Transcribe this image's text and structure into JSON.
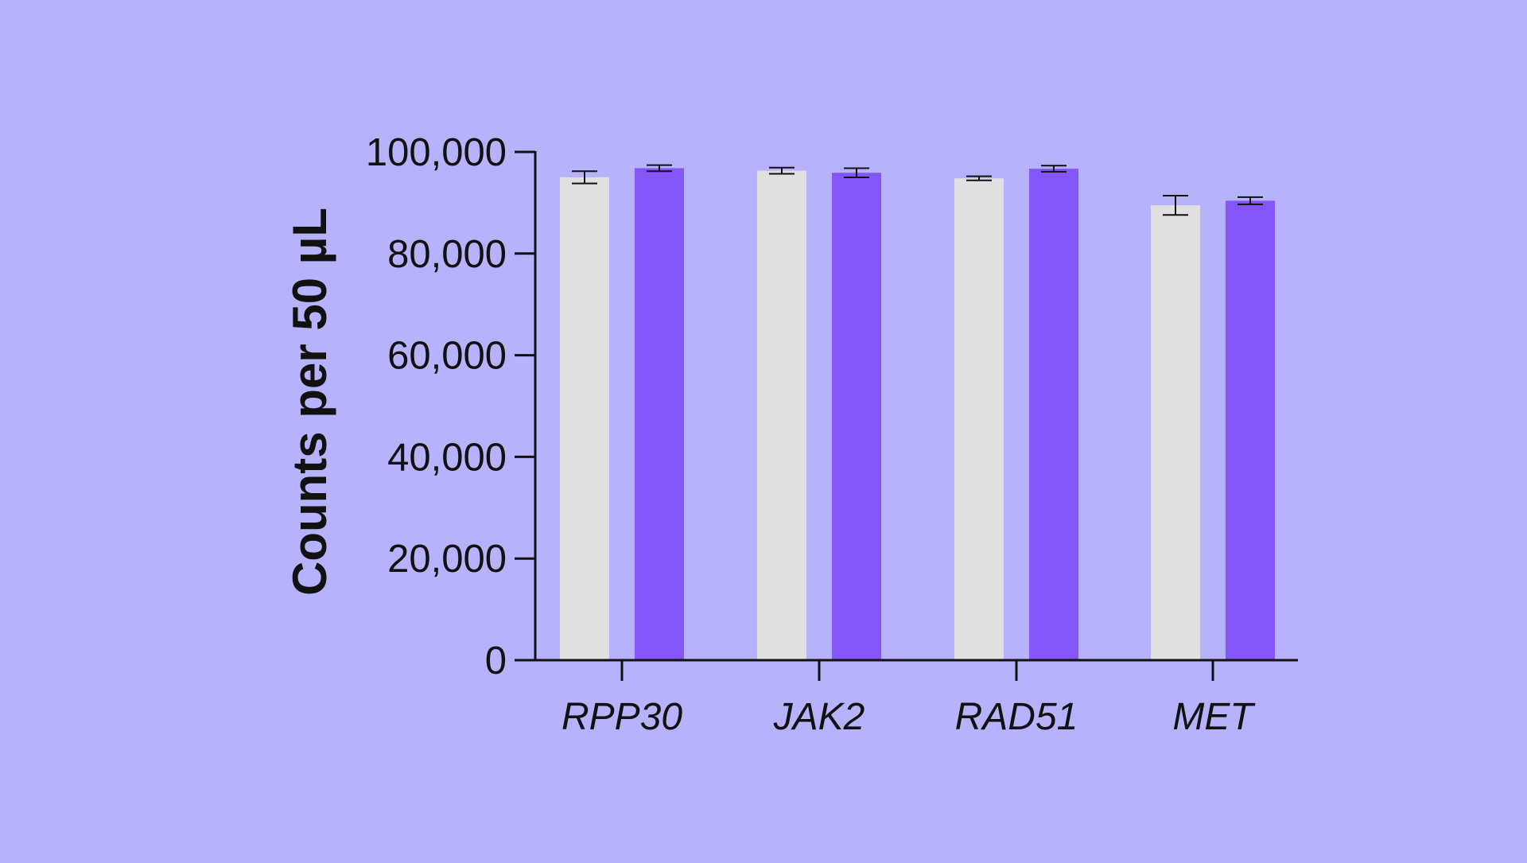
{
  "chart_data": {
    "type": "bar",
    "title": "",
    "xlabel": "",
    "ylabel": "Counts per 50 µL",
    "ylim": [
      0,
      100000
    ],
    "yticks": [
      0,
      20000,
      40000,
      60000,
      80000,
      100000
    ],
    "ytick_labels": [
      "0",
      "20,000",
      "40,000",
      "60,000",
      "80,000",
      "100,000"
    ],
    "categories": [
      "RPP30",
      "JAK2",
      "RAD51",
      "MET"
    ],
    "series": [
      {
        "color": "#e0e0e0",
        "values": [
          95000,
          96300,
          94800,
          89500
        ],
        "errors": [
          1200,
          600,
          400,
          1900
        ]
      },
      {
        "color": "#8455f7",
        "values": [
          96800,
          95900,
          96700,
          90400
        ],
        "errors": [
          600,
          900,
          600,
          700
        ]
      }
    ],
    "grid": false,
    "legend": "none"
  }
}
